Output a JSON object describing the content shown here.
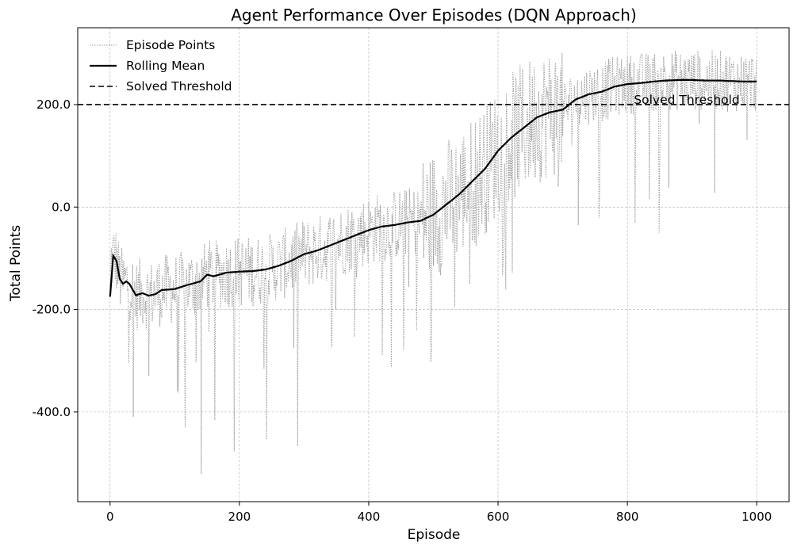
{
  "chart_data": {
    "type": "line",
    "title": "Agent Performance Over Episodes (DQN Approach)",
    "xlabel": "Episode",
    "ylabel": "Total Points",
    "xlim": [
      -50,
      1050
    ],
    "ylim": [
      -575,
      350
    ],
    "x_ticks": [
      0,
      200,
      400,
      600,
      800,
      1000
    ],
    "x_tick_labels": [
      "0",
      "200",
      "400",
      "600",
      "800",
      "1000"
    ],
    "y_ticks": [
      -400,
      -200,
      0,
      200
    ],
    "y_tick_labels": [
      "-400.0",
      "-200.0",
      "0.0",
      "200.0"
    ],
    "grid": true,
    "legend_position": "top-left",
    "legend": [
      "Episode Points",
      "Rolling Mean",
      "Solved Threshold"
    ],
    "threshold": {
      "name": "Solved Threshold",
      "value": 200,
      "label": "Solved Threshold",
      "label_x": 810
    },
    "series": [
      {
        "name": "Rolling Mean",
        "x": [
          0,
          2,
          5,
          10,
          15,
          20,
          25,
          30,
          40,
          50,
          60,
          70,
          80,
          100,
          120,
          140,
          150,
          160,
          180,
          200,
          220,
          240,
          260,
          280,
          300,
          320,
          340,
          360,
          380,
          400,
          420,
          440,
          460,
          480,
          500,
          520,
          540,
          560,
          580,
          600,
          620,
          640,
          660,
          680,
          700,
          720,
          740,
          760,
          780,
          800,
          820,
          840,
          860,
          880,
          900,
          920,
          940,
          960,
          980,
          1000
        ],
        "values": [
          -175,
          -105,
          -95,
          -105,
          -140,
          -150,
          -145,
          -150,
          -172,
          -168,
          -173,
          -170,
          -162,
          -160,
          -152,
          -145,
          -132,
          -135,
          -128,
          -126,
          -125,
          -122,
          -115,
          -105,
          -92,
          -85,
          -75,
          -65,
          -55,
          -45,
          -38,
          -35,
          -30,
          -27,
          -15,
          5,
          25,
          50,
          75,
          110,
          135,
          155,
          175,
          185,
          190,
          210,
          220,
          225,
          235,
          240,
          242,
          245,
          247,
          248,
          248,
          247,
          247,
          246,
          245,
          245
        ],
        "color": "#000000",
        "style": "solid"
      },
      {
        "name": "Episode Points",
        "x": [
          0,
          1000
        ],
        "trend": [
          -130,
          255
        ],
        "color": "#a0a0a0",
        "style": "dotted"
      }
    ]
  }
}
